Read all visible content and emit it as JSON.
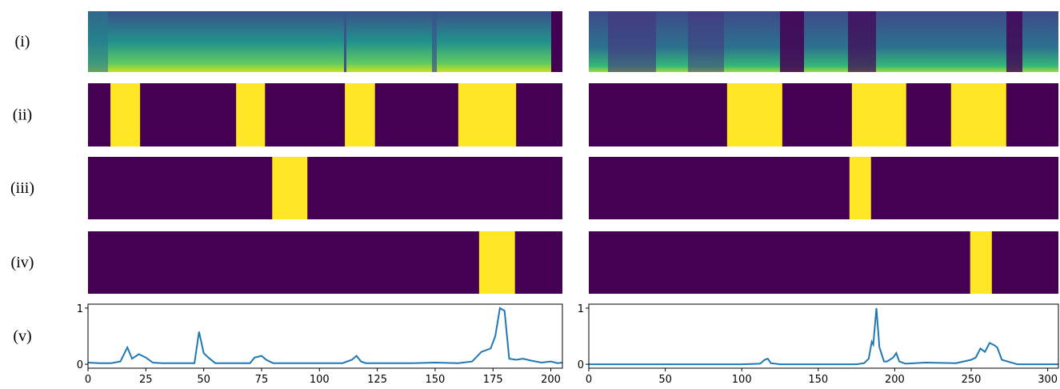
{
  "row_labels": [
    "(i)",
    "(ii)",
    "(iii)",
    "(iv)",
    "(v)"
  ],
  "chart_data": [
    {
      "type": "segments",
      "xlim": [
        0,
        205
      ],
      "segments": [
        [
          9.7,
          22.5
        ],
        [
          64,
          76.5
        ],
        [
          111,
          124
        ],
        [
          160,
          185
        ]
      ],
      "color": "#fde725",
      "background": "#440154"
    },
    {
      "type": "segments",
      "xlim": [
        0,
        205
      ],
      "segments": [
        [
          79.6,
          94.8
        ]
      ],
      "color": "#fde725",
      "background": "#440154"
    },
    {
      "type": "segments",
      "xlim": [
        0,
        205
      ],
      "segments": [
        [
          169,
          184.5
        ]
      ],
      "color": "#fde725",
      "background": "#440154"
    },
    {
      "type": "line",
      "xlim": [
        0,
        205
      ],
      "ylim": [
        -0.07,
        1.07
      ],
      "xticks": [
        0,
        25,
        50,
        75,
        100,
        125,
        150,
        175,
        200
      ],
      "yticks": [
        0,
        1
      ],
      "color": "#1f77b4",
      "x": [
        0,
        5,
        10,
        14,
        17,
        19,
        22,
        25,
        28,
        32,
        40,
        46,
        48,
        50,
        52,
        55,
        60,
        70,
        72,
        75,
        77,
        80,
        90,
        100,
        110,
        114,
        116,
        118,
        120,
        130,
        140,
        150,
        160,
        166,
        170,
        174,
        176,
        178,
        180,
        182,
        185,
        188,
        192,
        196,
        200,
        203,
        205
      ],
      "values": [
        0.03,
        0.02,
        0.02,
        0.05,
        0.3,
        0.1,
        0.18,
        0.12,
        0.03,
        0.02,
        0.02,
        0.02,
        0.58,
        0.2,
        0.12,
        0.02,
        0.02,
        0.02,
        0.12,
        0.15,
        0.08,
        0.02,
        0.02,
        0.02,
        0.02,
        0.08,
        0.15,
        0.05,
        0.02,
        0.02,
        0.02,
        0.03,
        0.02,
        0.05,
        0.22,
        0.28,
        0.5,
        1.0,
        0.95,
        0.1,
        0.08,
        0.1,
        0.06,
        0.03,
        0.05,
        0.02,
        0.03
      ]
    },
    {
      "type": "segments",
      "xlim": [
        0,
        307
      ],
      "segments": [
        [
          90.4,
          126.5
        ],
        [
          172,
          207.5
        ],
        [
          236.8,
          272.9
        ]
      ],
      "color": "#fde725",
      "background": "#440154"
    },
    {
      "type": "segments",
      "xlim": [
        0,
        307
      ],
      "segments": [
        [
          170.4,
          184.5
        ]
      ],
      "color": "#fde725",
      "background": "#440154"
    },
    {
      "type": "segments",
      "xlim": [
        0,
        307
      ],
      "segments": [
        [
          249.3,
          263.5
        ]
      ],
      "color": "#fde725",
      "background": "#440154"
    },
    {
      "type": "line",
      "xlim": [
        0,
        307
      ],
      "ylim": [
        -0.07,
        1.07
      ],
      "xticks": [
        0,
        50,
        100,
        150,
        200,
        250,
        300
      ],
      "yticks": [
        0,
        1
      ],
      "color": "#1f77b4",
      "x": [
        0,
        50,
        100,
        112,
        115,
        117,
        119,
        125,
        150,
        175,
        180,
        183,
        185,
        186,
        188,
        190,
        193,
        195,
        199,
        201,
        203,
        207,
        220,
        240,
        250,
        253,
        256,
        259,
        262,
        265,
        267,
        270,
        280,
        300,
        307
      ],
      "values": [
        0,
        0,
        0,
        0.01,
        0.08,
        0.1,
        0.02,
        0,
        0,
        0,
        0.02,
        0.1,
        0.4,
        0.35,
        1.0,
        0.3,
        0.05,
        0.05,
        0.12,
        0.2,
        0.05,
        0.01,
        0.03,
        0.02,
        0.08,
        0.12,
        0.28,
        0.22,
        0.38,
        0.34,
        0.3,
        0.08,
        0,
        0,
        0
      ]
    }
  ]
}
